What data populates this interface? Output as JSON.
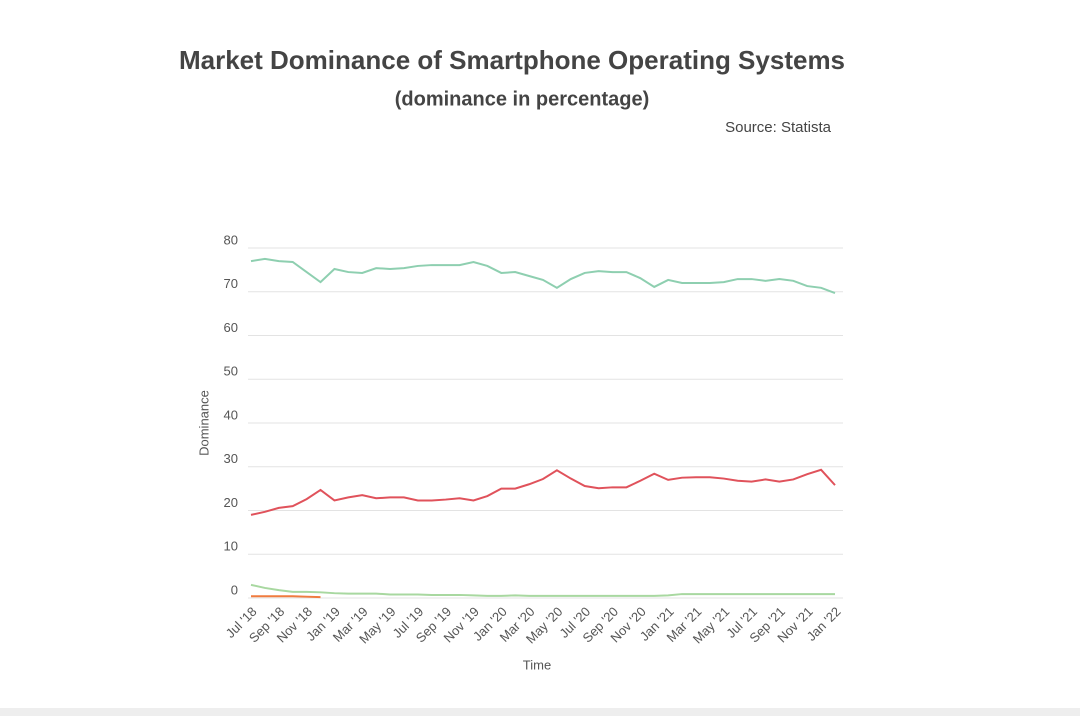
{
  "chart_data": {
    "type": "line",
    "title": "Market Dominance of Smartphone Operating Systems",
    "subtitle": "(dominance in percentage)",
    "source": "Source: Statista",
    "x_label": "Time",
    "y_label": "Dominance",
    "categories": [
      "Jul '18",
      null,
      "Sep '18",
      null,
      "Nov '18",
      null,
      "Jan '19",
      null,
      "Mar '19",
      null,
      "May '19",
      null,
      "Jul '19",
      null,
      "Sep '19",
      null,
      "Nov '19",
      null,
      "Jan '20",
      null,
      "Mar '20",
      null,
      "May '20",
      null,
      "Jul '20",
      null,
      "Sep '20",
      null,
      "Nov '20",
      null,
      "Jan '21",
      null,
      "Mar '21",
      null,
      "May '21",
      null,
      "Jul '21",
      null,
      "Sep '21",
      null,
      "Nov '21",
      null,
      "Jan '22"
    ],
    "series": [
      {
        "color": "#8ecfb0",
        "values": [
          77.0,
          77.5,
          77.0,
          76.8,
          74.5,
          72.2,
          75.2,
          74.5,
          74.3,
          75.4,
          75.2,
          75.4,
          75.9,
          76.1,
          76.1,
          76.1,
          76.8,
          75.9,
          74.3,
          74.5,
          73.6,
          72.7,
          70.9,
          72.9,
          74.3,
          74.7,
          74.5,
          74.5,
          73.1,
          71.1,
          72.7,
          72.0,
          72.0,
          72.0,
          72.2,
          72.9,
          72.9,
          72.5,
          72.9,
          72.5,
          71.3,
          70.9,
          69.7
        ]
      },
      {
        "color": "#e0525b",
        "values": [
          19.0,
          19.7,
          20.6,
          21.0,
          22.6,
          24.7,
          22.3,
          23.0,
          23.5,
          22.8,
          23.0,
          23.0,
          22.3,
          22.3,
          22.5,
          22.8,
          22.3,
          23.3,
          25.0,
          25.0,
          26.0,
          27.2,
          29.2,
          27.3,
          25.6,
          25.1,
          25.3,
          25.3,
          26.8,
          28.4,
          27.0,
          27.5,
          27.6,
          27.6,
          27.3,
          26.8,
          26.6,
          27.1,
          26.6,
          27.1,
          28.3,
          29.3,
          25.8
        ]
      },
      {
        "color": "#a8d8a0",
        "values": [
          3.0,
          2.3,
          1.8,
          1.4,
          1.4,
          1.3,
          1.1,
          1.0,
          1.0,
          1.0,
          0.8,
          0.8,
          0.8,
          0.7,
          0.7,
          0.7,
          0.6,
          0.5,
          0.5,
          0.6,
          0.5,
          0.5,
          0.5,
          0.5,
          0.5,
          0.5,
          0.5,
          0.5,
          0.5,
          0.5,
          0.6,
          0.9,
          0.9,
          0.9,
          0.9,
          0.9,
          0.9,
          0.9,
          0.9,
          0.9,
          0.9,
          0.9,
          0.9
        ]
      },
      {
        "color": "#f07b3f",
        "values": [
          0.4,
          0.4,
          0.4,
          0.4,
          0.3,
          0.2,
          null,
          null,
          null,
          null,
          null,
          null,
          null,
          null,
          null,
          null,
          null,
          null,
          null,
          null,
          null,
          null,
          null,
          null,
          null,
          null,
          null,
          null,
          null,
          null,
          null,
          null,
          null,
          null,
          null,
          null,
          null,
          null,
          null,
          null,
          null,
          null,
          null
        ]
      }
    ],
    "ylim": [
      0,
      80
    ],
    "yticks": [
      0,
      10,
      20,
      30,
      40,
      50,
      60,
      70,
      80
    ],
    "grid": true
  }
}
